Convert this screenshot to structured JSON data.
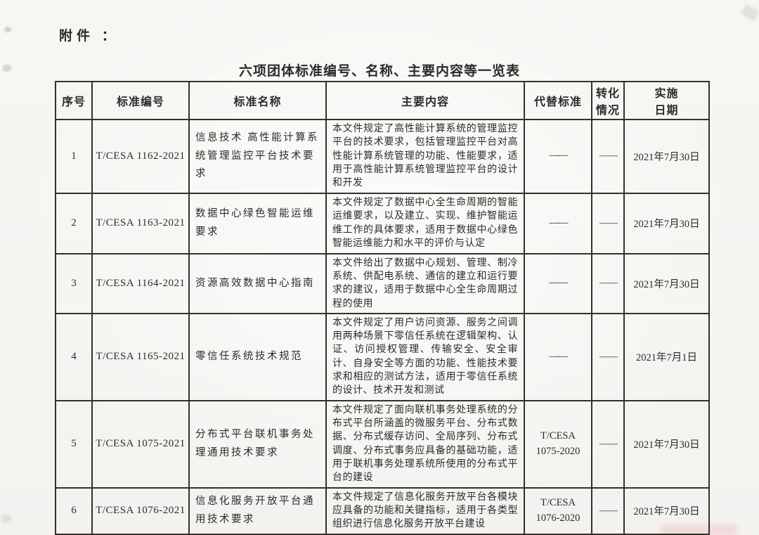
{
  "page": {
    "attachment_label": "附件 ：",
    "title": "六项团体标准编号、名称、主要内容等一览表"
  },
  "table": {
    "headers": {
      "no": "序号",
      "code": "标准编号",
      "name": "标准名称",
      "content": "主要内容",
      "replaces": "代替标准",
      "conversion_line1": "转化",
      "conversion_line2": "情况",
      "date_line1": "实施",
      "date_line2": "日期"
    },
    "rows": [
      {
        "no": "1",
        "code": "T/CESA 1162-2021",
        "name": "信息技术 高性能计算系统管理监控平台技术要求",
        "content": "本文件规定了高性能计算系统的管理监控平台的技术要求，包括管理监控平台对高性能计算系统管理的功能、性能要求，适用于高性能计算系统管理监控平台的设计和开发",
        "replaces": "——",
        "conversion": "——",
        "date": "2021年7月30日"
      },
      {
        "no": "2",
        "code": "T/CESA 1163-2021",
        "name": "数据中心绿色智能运维要求",
        "content": "本文件规定了数据中心全生命周期的智能运维要求，以及建立、实现、维护智能运维工作的具体要求，适用于数据中心绿色智能运维能力和水平的评价与认定",
        "replaces": "——",
        "conversion": "——",
        "date": "2021年7月30日"
      },
      {
        "no": "3",
        "code": "T/CESA 1164-2021",
        "name": "资源高效数据中心指南",
        "content": "本文件给出了数据中心规划、管理、制冷系统、供配电系统、通信的建立和运行要求的建议，适用于数据中心全生命周期过程的使用",
        "replaces": "——",
        "conversion": "——",
        "date": "2021年7月30日"
      },
      {
        "no": "4",
        "code": "T/CESA 1165-2021",
        "name": "零信任系统技术规范",
        "content": "本文件规定了用户访问资源、服务之间调用两种场景下零信任系统在逻辑架构、认证、访问授权管理、传输安全、安全审计、自身安全等方面的功能、性能技术要求和相应的测试方法，适用于零信任系统的设计、技术开发和测试",
        "replaces": "——",
        "conversion": "——",
        "date": "2021年7月1日"
      },
      {
        "no": "5",
        "code": "T/CESA 1075-2021",
        "name": "分布式平台联机事务处理通用技术要求",
        "content": "本文件规定了面向联机事务处理系统的分布式平台所涵盖的微服务平台、分布式数据、分布式缓存访问、全局序列、分布式调度、分布式事务应具备的基础功能，适用于联机事务处理系统所使用的分布式平台的建设",
        "replaces": "T/CESA 1075-2020",
        "conversion": "——",
        "date": "2021年7月30日"
      },
      {
        "no": "6",
        "code": "T/CESA 1076-2021",
        "name": "信息化服务开放平台通用技术要求",
        "content": "本文件规定了信息化服务开放平台各模块应具备的功能和关键指标，适用于各类型组织进行信息化服务开放平台建设",
        "replaces": "T/CESA 1076-2020",
        "conversion": "——",
        "date": "2021年7月30日"
      }
    ]
  },
  "colors": {
    "ink": "#2b2b2b",
    "border": "#333129",
    "paper": "#fbfaf7"
  }
}
